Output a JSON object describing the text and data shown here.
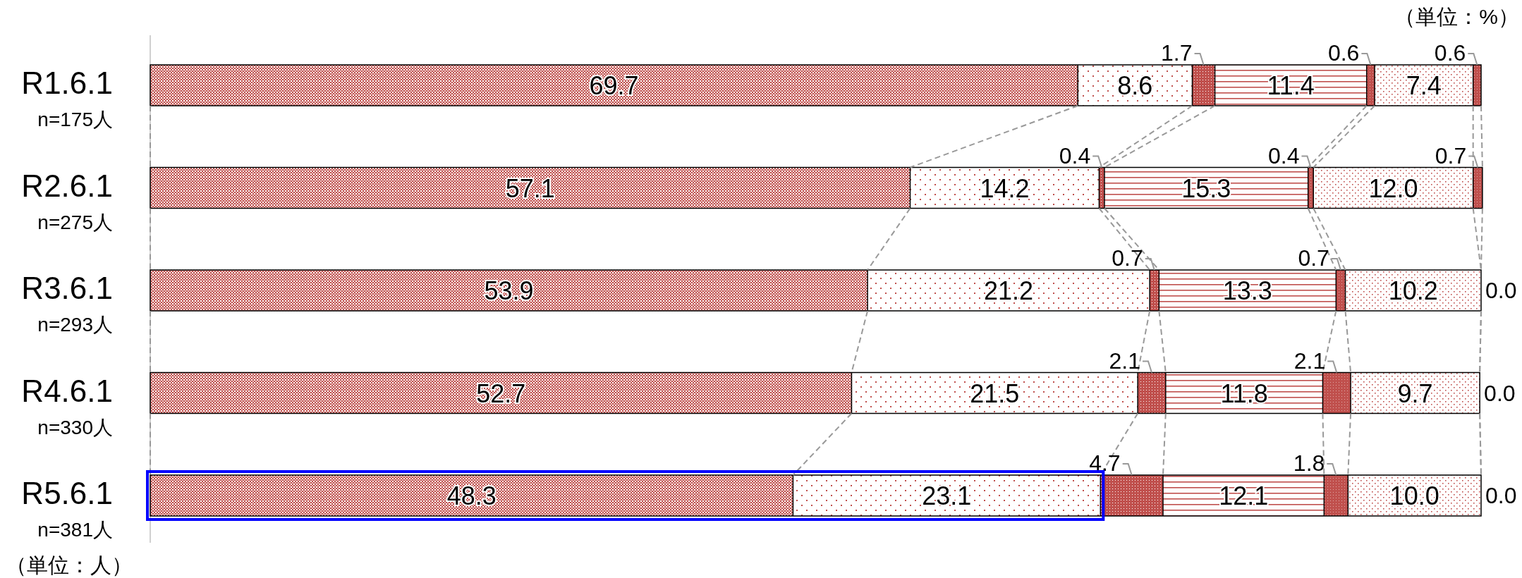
{
  "chart_data": {
    "type": "bar",
    "orientation": "horizontal",
    "stacked": true,
    "xlim": [
      0,
      100
    ],
    "categories": [
      "R1.6.1\nn=175人",
      "R2.6.1\nn=275人",
      "R3.6.1\nn=293人",
      "R4.6.1\nn=330人",
      "R5.6.1\nn=381人"
    ],
    "series": [
      {
        "color": "#c0504d",
        "values": [
          69.7,
          57.1,
          53.9,
          52.7,
          48.3
        ],
        "value_labels": [
          "69.7",
          "57.1",
          "53.9",
          "52.7",
          "48.3"
        ]
      },
      {
        "color": "#c0504d",
        "values": [
          8.6,
          14.2,
          21.2,
          21.5,
          23.1
        ],
        "value_labels": [
          "8.6",
          "14.2",
          "21.2",
          "21.5",
          "23.1"
        ]
      },
      {
        "color": "#c0504d",
        "values": [
          1.7,
          0.4,
          0.7,
          2.1,
          4.7
        ],
        "value_labels": [
          "1.7",
          "0.4",
          "0.7",
          "2.1",
          "4.7"
        ]
      },
      {
        "color": "#c0504d",
        "values": [
          11.4,
          15.3,
          13.3,
          11.8,
          12.1
        ],
        "value_labels": [
          "11.4",
          "15.3",
          "13.3",
          "11.8",
          "12.1"
        ]
      },
      {
        "color": "#c0504d",
        "values": [
          0.6,
          0.4,
          0.7,
          2.1,
          1.8
        ],
        "value_labels": [
          "0.6",
          "0.4",
          "0.7",
          "2.1",
          "1.8"
        ]
      },
      {
        "color": "#c0504d",
        "values": [
          7.4,
          12.0,
          10.2,
          9.7,
          10.0
        ],
        "value_labels": [
          "7.4",
          "12.0",
          "10.2",
          "9.7",
          "10.0"
        ]
      },
      {
        "color": "#c0504d",
        "values": [
          0.6,
          0.7,
          0.0,
          0.0,
          0.0
        ],
        "value_labels": [
          "0.6",
          "0.7",
          "0.0",
          "0.0",
          "0.0"
        ]
      }
    ],
    "annotations": [
      "（単位：%）",
      "（単位：人）"
    ]
  }
}
